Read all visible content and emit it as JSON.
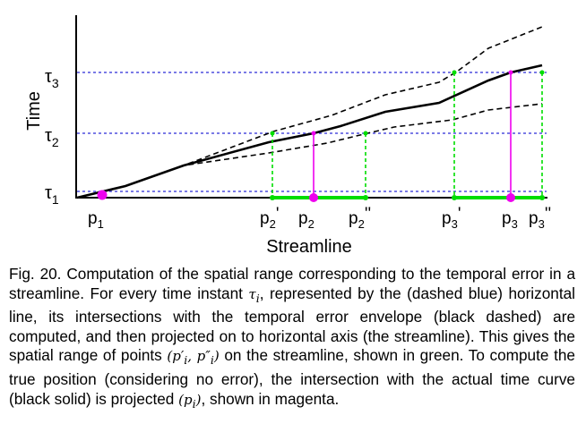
{
  "figure": {
    "y_axis_label": "Time",
    "x_axis_label": "Streamline",
    "tau_base": "τ",
    "tau_labels": [
      {
        "id": "tau1",
        "sub": "1"
      },
      {
        "id": "tau2",
        "sub": "2"
      },
      {
        "id": "tau3",
        "sub": "3"
      }
    ],
    "point_labels": [
      {
        "id": "p1",
        "base": "p",
        "sub": "1",
        "prime": ""
      },
      {
        "id": "p2-prime",
        "base": "p",
        "sub": "2",
        "prime": "'"
      },
      {
        "id": "p2",
        "base": "p",
        "sub": "2",
        "prime": ""
      },
      {
        "id": "p2-dprime",
        "base": "p",
        "sub": "2",
        "prime": "''"
      },
      {
        "id": "p3-prime",
        "base": "p",
        "sub": "3",
        "prime": "'"
      },
      {
        "id": "p3",
        "base": "p",
        "sub": "3",
        "prime": ""
      },
      {
        "id": "p3-dprime",
        "base": "p",
        "sub": "3",
        "prime": "''"
      }
    ],
    "colors": {
      "time_curve": "#000000",
      "error_envelope": "#000000",
      "tau_lines": "#2a2ad8",
      "range_projection": "#00dd00",
      "true_projection": "#ee00ee"
    }
  },
  "caption": {
    "fig_label": "Fig. 20.",
    "seg1": " Computation of the spatial range corresponding to the temporal error in a streamline. For every time instant ",
    "m1": "τ",
    "m1_sub": "i",
    "seg2": ", represented by the (dashed blue) horizontal line, its intersections with the temporal error envelope (black dashed) are computed, and then projected on to horizontal axis (the streamline). This gives the spatial range of points ",
    "m2": "(p′",
    "m2_sub": "i",
    "m2b": ", p″",
    "m2b_sub": "i",
    "m2c": ")",
    "seg3": " on the streamline, shown in green. To compute the true position (considering no error), the intersection with the actual time curve (black solid) is projected ",
    "m3": "(p",
    "m3_sub": "i",
    "m3c": ")",
    "seg4": ", shown in magenta."
  }
}
